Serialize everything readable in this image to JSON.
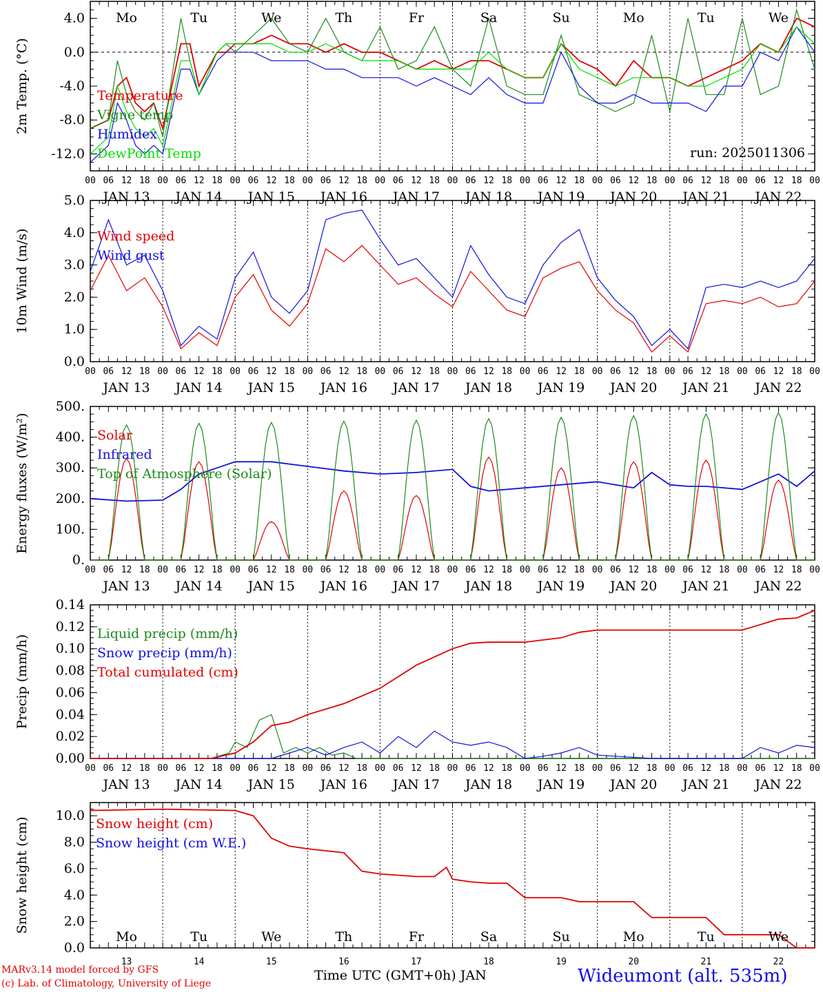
{
  "station": "Wideumont (alt. 535m)",
  "run_label": "run: 2025011306",
  "footer": {
    "model": "MARv3.14 model forced by GFS",
    "lab": "(c) Lab. of Climatology, University of Liege",
    "xlabel": "Time UTC (GMT+0h) JAN"
  },
  "days": [
    "Mo",
    "Tu",
    "We",
    "Th",
    "Fr",
    "Sa",
    "Su",
    "Mo",
    "Tu",
    "We"
  ],
  "day_colors": [
    "#000",
    "#000",
    "#000",
    "#000",
    "#000",
    "#e00000",
    "#e00000",
    "#000",
    "#000",
    "#000"
  ],
  "dates": [
    "JAN 13",
    "JAN 14",
    "JAN 15",
    "JAN 16",
    "JAN 17",
    "JAN 18",
    "JAN 19",
    "JAN 20",
    "JAN 21",
    "JAN 22"
  ],
  "bottom_dates": [
    "13",
    "14",
    "15",
    "16",
    "17",
    "18",
    "19",
    "20",
    "21",
    "22"
  ],
  "hour_ticks": [
    "00",
    "06",
    "12",
    "18"
  ],
  "chart_data": [
    {
      "type": "line",
      "ylabel": "2m Temp. (°C)",
      "ylim": [
        -14,
        6
      ],
      "yticks": [
        "4.0",
        "0.0",
        "-4.0",
        "-8.0",
        "-12.0"
      ],
      "ytick_values": [
        4,
        0,
        -4,
        -8,
        -12
      ],
      "x_unit": "hours from Jan 13 00 UTC",
      "zero_line": true,
      "series": [
        {
          "name": "Temperature",
          "color": "#e00000",
          "x": [
            0,
            6,
            9,
            12,
            15,
            18,
            21,
            24,
            30,
            33,
            36,
            42,
            45,
            48,
            54,
            60,
            66,
            72,
            78,
            84,
            90,
            96,
            102,
            108,
            114,
            120,
            126,
            132,
            138,
            144,
            150,
            156,
            162,
            168,
            174,
            180,
            186,
            192,
            198,
            204,
            210,
            216,
            222,
            228,
            234,
            240
          ],
          "y": [
            -9,
            -8,
            -4,
            -3,
            -6,
            -7,
            -6,
            -9,
            1,
            1,
            -4,
            0,
            0,
            1,
            1,
            2,
            1,
            1,
            0,
            1,
            0,
            0,
            -1,
            -2,
            -1,
            -2,
            -1,
            -1,
            -2,
            -3,
            -3,
            1,
            -1,
            -2,
            -4,
            -1,
            -3,
            -3,
            -4,
            -3,
            -2,
            -1,
            1,
            0,
            4,
            3
          ]
        },
        {
          "name": "Vigne temp",
          "color": "#1a8a1a",
          "x": [
            0,
            6,
            9,
            12,
            15,
            18,
            21,
            24,
            30,
            33,
            36,
            42,
            45,
            48,
            54,
            60,
            66,
            72,
            78,
            84,
            90,
            96,
            102,
            108,
            114,
            120,
            126,
            132,
            138,
            144,
            150,
            156,
            162,
            168,
            174,
            180,
            186,
            192,
            198,
            204,
            210,
            216,
            222,
            228,
            234,
            240
          ],
          "y": [
            -9,
            -8,
            -1,
            -5,
            -7,
            -8,
            -6,
            -10,
            4,
            -1,
            -5,
            0,
            1,
            0,
            2,
            4,
            1,
            0,
            4,
            0,
            -1,
            3,
            -2,
            -1,
            3,
            -2,
            -4,
            4,
            -4,
            -5,
            -5,
            2,
            -5,
            -6,
            -7,
            -6,
            2,
            -7,
            4,
            -5,
            -5,
            4,
            -5,
            -4,
            5,
            -2
          ]
        },
        {
          "name": "Humidex",
          "color": "#1010e0",
          "x": [
            0,
            6,
            9,
            12,
            15,
            18,
            21,
            24,
            30,
            33,
            36,
            42,
            45,
            48,
            54,
            60,
            66,
            72,
            78,
            84,
            90,
            96,
            102,
            108,
            114,
            120,
            126,
            132,
            138,
            144,
            150,
            156,
            162,
            168,
            174,
            180,
            186,
            192,
            198,
            204,
            210,
            216,
            222,
            228,
            234,
            240
          ],
          "y": [
            -13,
            -11,
            -6,
            -8,
            -11,
            -12,
            -11,
            -12,
            -2,
            -2,
            -5,
            -1,
            0,
            0,
            0,
            -1,
            -1,
            -1,
            -2,
            -2,
            -3,
            -3,
            -3,
            -4,
            -3,
            -4,
            -5,
            -3,
            -5,
            -6,
            -6,
            0,
            -4,
            -6,
            -6,
            -5,
            -6,
            -6,
            -6,
            -7,
            -4,
            -4,
            0,
            -1,
            3,
            0
          ]
        },
        {
          "name": "DewPoint Temp",
          "color": "#00dd00",
          "x": [
            0,
            6,
            9,
            12,
            15,
            18,
            21,
            24,
            30,
            33,
            36,
            42,
            45,
            48,
            54,
            60,
            66,
            72,
            78,
            84,
            90,
            96,
            102,
            108,
            114,
            120,
            126,
            132,
            138,
            144,
            150,
            156,
            162,
            168,
            174,
            180,
            186,
            192,
            198,
            204,
            210,
            216,
            222,
            228,
            234,
            240
          ],
          "y": [
            -12,
            -10,
            -4,
            -7,
            -9,
            -10,
            -9,
            -11,
            -1,
            -1,
            -5,
            0,
            1,
            1,
            1,
            1,
            0,
            0,
            1,
            0,
            -1,
            -1,
            -1,
            -2,
            -2,
            -2,
            -2,
            0,
            -2,
            -3,
            -3,
            1,
            -2,
            -3,
            -4,
            -3,
            -3,
            -3,
            -4,
            -4,
            -3,
            -2,
            1,
            0,
            3,
            1
          ]
        }
      ]
    },
    {
      "type": "line",
      "ylabel": "10m Wind (m/s)",
      "ylim": [
        0,
        5
      ],
      "yticks": [
        "5.0",
        "4.0",
        "3.0",
        "2.0",
        "1.0",
        "0.0"
      ],
      "ytick_values": [
        5,
        4,
        3,
        2,
        1,
        0
      ],
      "series": [
        {
          "name": "Wind speed",
          "color": "#e00000",
          "x": [
            0,
            6,
            12,
            18,
            24,
            30,
            36,
            42,
            48,
            54,
            60,
            66,
            72,
            78,
            84,
            90,
            96,
            102,
            108,
            114,
            120,
            126,
            132,
            138,
            144,
            150,
            156,
            162,
            168,
            174,
            180,
            186,
            192,
            198,
            204,
            210,
            216,
            222,
            228,
            234,
            240
          ],
          "y": [
            2.2,
            3.3,
            2.2,
            2.6,
            1.7,
            0.4,
            0.9,
            0.5,
            2.0,
            2.7,
            1.6,
            1.1,
            1.8,
            3.5,
            3.1,
            3.6,
            3.0,
            2.4,
            2.6,
            2.1,
            1.7,
            2.8,
            2.2,
            1.6,
            1.4,
            2.6,
            2.9,
            3.1,
            2.2,
            1.6,
            1.2,
            0.3,
            0.8,
            0.3,
            1.8,
            1.9,
            1.8,
            2.0,
            1.7,
            1.8,
            2.5
          ]
        },
        {
          "name": "Wind gust",
          "color": "#1010e0",
          "x": [
            0,
            6,
            12,
            18,
            24,
            30,
            36,
            42,
            48,
            54,
            60,
            66,
            72,
            78,
            84,
            90,
            96,
            102,
            108,
            114,
            120,
            126,
            132,
            138,
            144,
            150,
            156,
            162,
            168,
            174,
            180,
            186,
            192,
            198,
            204,
            210,
            216,
            222,
            228,
            234,
            240
          ],
          "y": [
            2.8,
            4.4,
            3.0,
            3.3,
            2.2,
            0.5,
            1.1,
            0.7,
            2.6,
            3.4,
            2.0,
            1.5,
            2.2,
            4.4,
            4.6,
            4.7,
            3.8,
            3.0,
            3.2,
            2.6,
            2.0,
            3.6,
            2.7,
            2.0,
            1.8,
            3.0,
            3.7,
            4.1,
            2.6,
            1.9,
            1.4,
            0.5,
            1.0,
            0.4,
            2.3,
            2.4,
            2.3,
            2.5,
            2.3,
            2.5,
            3.2
          ]
        }
      ]
    },
    {
      "type": "line",
      "ylabel": "Energy fluxes (W/m²)",
      "ylim": [
        0,
        500
      ],
      "yticks": [
        "500.",
        "400.",
        "300.",
        "200.",
        "100.",
        "0."
      ],
      "ytick_values": [
        500,
        400,
        300,
        200,
        100,
        0
      ],
      "series": [
        {
          "name": "Solar",
          "color": "#e00000",
          "peaks": [
            330,
            320,
            125,
            225,
            210,
            335,
            300,
            320,
            325,
            260
          ]
        },
        {
          "name": "Infrared",
          "color": "#1010e0",
          "x": [
            0,
            12,
            24,
            30,
            36,
            42,
            48,
            60,
            72,
            84,
            96,
            108,
            120,
            126,
            132,
            144,
            156,
            168,
            180,
            186,
            192,
            198,
            204,
            216,
            228,
            234,
            240
          ],
          "y": [
            200,
            192,
            195,
            230,
            280,
            300,
            320,
            320,
            305,
            290,
            280,
            285,
            295,
            240,
            225,
            235,
            245,
            255,
            235,
            285,
            245,
            240,
            240,
            230,
            280,
            240,
            290
          ]
        },
        {
          "name": "Top of Atmosphere (Solar)",
          "color": "#1a8a1a",
          "peaks": [
            440,
            445,
            448,
            452,
            455,
            460,
            465,
            470,
            476,
            480
          ]
        }
      ]
    },
    {
      "type": "line",
      "ylabel": "Precip (mm/h)",
      "ylim": [
        0,
        0.14
      ],
      "yticks": [
        "0.14",
        "0.12",
        "0.10",
        "0.08",
        "0.06",
        "0.04",
        "0.02",
        "0.00"
      ],
      "ytick_values": [
        0.14,
        0.12,
        0.1,
        0.08,
        0.06,
        0.04,
        0.02,
        0
      ],
      "series": [
        {
          "name": "Liquid precip (mm/h)",
          "color": "#1a8a1a",
          "x": [
            0,
            40,
            46,
            48,
            52,
            56,
            60,
            64,
            68,
            72,
            76,
            80,
            84,
            88,
            96,
            240
          ],
          "y": [
            0,
            0,
            0.005,
            0.015,
            0.01,
            0.035,
            0.04,
            0.005,
            0.01,
            0.005,
            0.01,
            0.003,
            0.005,
            0,
            0,
            0
          ]
        },
        {
          "name": "Snow precip (mm/h)",
          "color": "#1010e0",
          "x": [
            0,
            60,
            66,
            72,
            78,
            84,
            90,
            96,
            102,
            108,
            114,
            120,
            126,
            132,
            138,
            144,
            150,
            156,
            162,
            168,
            174,
            180,
            186,
            192,
            198,
            204,
            210,
            216,
            222,
            228,
            234,
            240
          ],
          "y": [
            0,
            0,
            0.005,
            0.01,
            0.003,
            0.01,
            0.015,
            0.005,
            0.02,
            0.01,
            0.025,
            0.015,
            0.012,
            0.015,
            0.01,
            0,
            0.002,
            0.005,
            0.01,
            0.003,
            0.002,
            0.001,
            0,
            0,
            0,
            0,
            0,
            0,
            0.01,
            0.005,
            0.012,
            0.01
          ]
        },
        {
          "name": "Total cumulated (cm)",
          "color": "#e00000",
          "x": [
            0,
            40,
            48,
            54,
            60,
            66,
            72,
            84,
            96,
            108,
            120,
            126,
            132,
            144,
            156,
            162,
            168,
            180,
            192,
            204,
            216,
            222,
            228,
            234,
            240
          ],
          "y": [
            0,
            0,
            0.005,
            0.015,
            0.03,
            0.033,
            0.04,
            0.05,
            0.064,
            0.085,
            0.1,
            0.105,
            0.106,
            0.106,
            0.11,
            0.115,
            0.117,
            0.117,
            0.117,
            0.117,
            0.117,
            0.122,
            0.127,
            0.128,
            0.135
          ]
        }
      ]
    },
    {
      "type": "line",
      "ylabel": "Snow height (cm)",
      "ylim": [
        0,
        11
      ],
      "yticks": [
        "10.0",
        "8.0",
        "6.0",
        "4.0",
        "2.0",
        "0.0"
      ],
      "ytick_values": [
        10,
        8,
        6,
        4,
        2,
        0
      ],
      "series": [
        {
          "name": "Snow height (cm)",
          "color": "#e00000",
          "x": [
            0,
            24,
            48,
            54,
            60,
            66,
            72,
            84,
            90,
            96,
            108,
            114,
            118,
            120,
            126,
            132,
            138,
            144,
            156,
            162,
            168,
            180,
            186,
            192,
            198,
            204,
            210,
            216,
            222,
            228,
            234,
            240
          ],
          "y": [
            10.4,
            10.5,
            10.4,
            10.0,
            8.3,
            7.7,
            7.5,
            7.2,
            5.8,
            5.6,
            5.4,
            5.4,
            6.1,
            5.2,
            5.0,
            4.9,
            4.9,
            3.8,
            3.8,
            3.5,
            3.5,
            3.5,
            2.3,
            2.3,
            2.3,
            2.3,
            1.0,
            1.0,
            1.0,
            1.0,
            0,
            0
          ]
        },
        {
          "name": "Snow height (cm W.E.)",
          "color": "#1010e0",
          "x": [],
          "y": []
        }
      ]
    }
  ]
}
